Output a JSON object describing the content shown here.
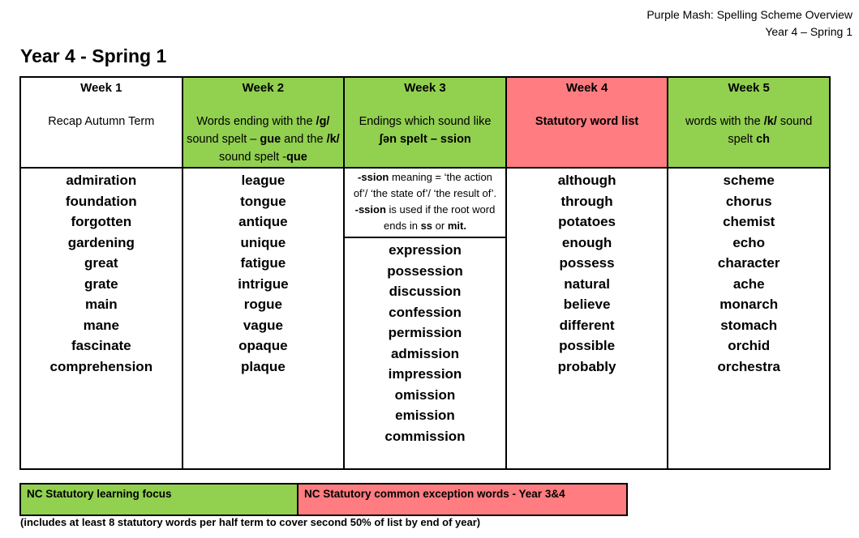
{
  "header": {
    "line1": "Purple Mash: Spelling Scheme Overview",
    "line2": "Year 4 – Spring 1"
  },
  "title": "Year 4 - Spring 1",
  "weeks": [
    {
      "label": "Week 1",
      "color": "#ffffff",
      "desc": "Recap Autumn Term",
      "words": [
        "admiration",
        "foundation",
        "forgotten",
        "gardening",
        "great",
        "grate",
        "main",
        "mane",
        "fascinate",
        "comprehension"
      ]
    },
    {
      "label": "Week 2",
      "color": "#92d050",
      "desc_parts": [
        "Words ending with the ",
        "/g/",
        " sound spelt – ",
        "gue",
        " and the ",
        "/k/",
        " sound spelt -",
        "que"
      ],
      "words": [
        "league",
        "tongue",
        "antique",
        "unique",
        "fatigue",
        "intrigue",
        "rogue",
        "vague",
        "opaque",
        "plaque"
      ]
    },
    {
      "label": "Week 3",
      "color": "#92d050",
      "desc_parts": [
        "Endings which sound like ",
        "ʃən spelt – ",
        "ssion"
      ],
      "note_parts": [
        "-ssion",
        " meaning = ‘the action of’/ ‘the state of’/ ‘the result of’.",
        "-ssion",
        " is used if the root word ends in ",
        "ss",
        " or ",
        "mit."
      ],
      "words": [
        "expression",
        "possession",
        "discussion",
        "confession",
        "permission",
        "admission",
        "impression",
        "omission",
        "emission",
        "commission"
      ]
    },
    {
      "label": "Week 4",
      "color": "#ff7c80",
      "desc": "Statutory word list",
      "words": [
        "although",
        "through",
        "potatoes",
        "enough",
        "possess",
        "natural",
        "believe",
        "different",
        "possible",
        "probably"
      ]
    },
    {
      "label": "Week 5",
      "color": "#92d050",
      "desc_parts": [
        "words with the ",
        "/k/",
        " sound spelt ",
        "ch"
      ],
      "words": [
        "scheme",
        "chorus",
        "chemist",
        "echo",
        "character",
        "ache",
        "monarch",
        "stomach",
        "orchid",
        "orchestra"
      ]
    }
  ],
  "key": {
    "green_label": "NC Statutory learning focus",
    "green_color": "#92d050",
    "red_label": "NC Statutory common exception words - Year 3&4",
    "red_color": "#ff7c80"
  },
  "footer": "(includes at least 8 statutory words per half term to cover second 50% of list by end of year)"
}
